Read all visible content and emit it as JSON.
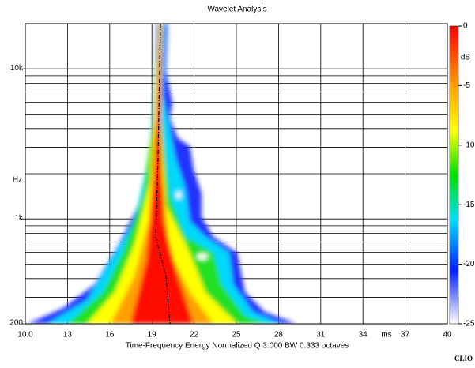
{
  "chart_data": {
    "type": "heatmap",
    "title": "Wavelet Analysis",
    "xlabel": "Time-Frequency Energy  Normalized  Q 3.000 BW 0.333 octaves",
    "xunit": "ms",
    "ylabel": "Hz",
    "zlabel": "dB",
    "brand": "CLIO",
    "xlim": [
      10,
      40
    ],
    "xticks": [
      {
        "value": 10,
        "label": "10.0"
      },
      13,
      16,
      19,
      22,
      25,
      28,
      31,
      34,
      37,
      40
    ],
    "ylim": [
      200,
      20000
    ],
    "log_y": true,
    "yticks": [
      200,
      {
        "value": 1000,
        "label": "1k"
      },
      {
        "value": 10000,
        "label": "10k"
      }
    ],
    "y_minor_grid": [
      300,
      400,
      500,
      600,
      700,
      800,
      900,
      2000,
      3000,
      4000,
      5000,
      6000,
      7000,
      8000,
      9000,
      20000
    ],
    "zlim": [
      -25,
      0
    ],
    "zticks": [
      0,
      -5,
      -10,
      -15,
      -20,
      -25
    ],
    "grid": true
  }
}
